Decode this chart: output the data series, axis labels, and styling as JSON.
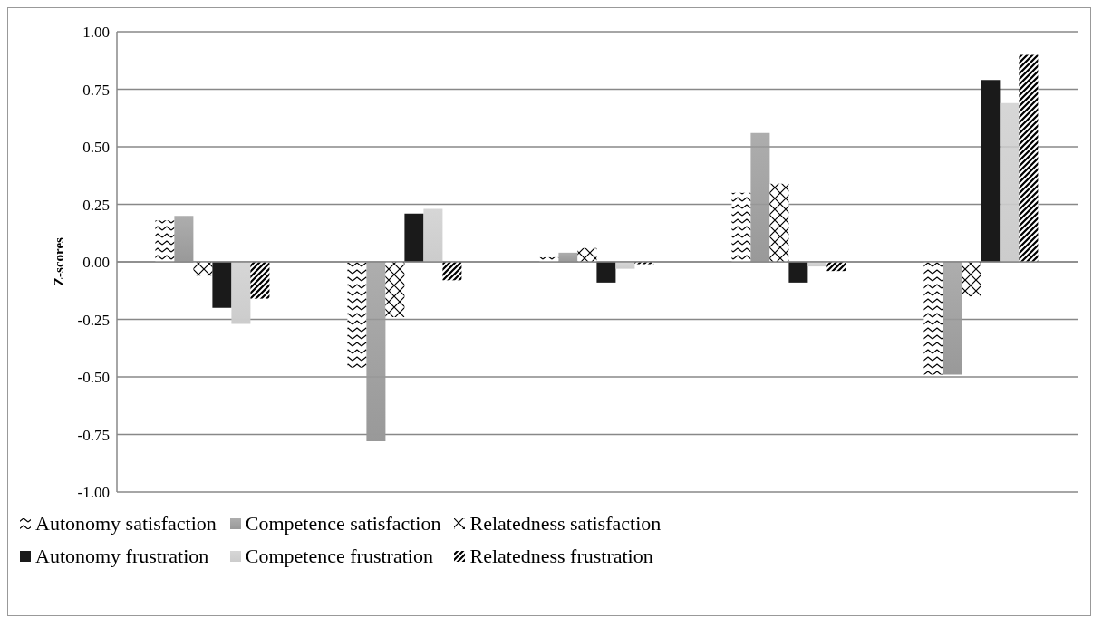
{
  "chart_data": {
    "type": "bar",
    "ylabel": "Z-scores",
    "categories": [
      null,
      null,
      null,
      null,
      null
    ],
    "series": [
      {
        "name": "Autonomy satisfaction",
        "color": "#000000",
        "values": [
          0.18,
          -0.46,
          0.02,
          0.3,
          -0.49
        ]
      },
      {
        "name": "Competence satisfaction",
        "color": "#999999",
        "values": [
          0.2,
          -0.78,
          0.04,
          0.56,
          -0.49
        ]
      },
      {
        "name": "Relatedness satisfaction",
        "color": "#000000",
        "values": [
          -0.06,
          -0.24,
          0.06,
          0.34,
          -0.15
        ]
      },
      {
        "name": "Autonomy frustration",
        "color": "#1a1a1a",
        "values": [
          -0.2,
          0.21,
          -0.09,
          -0.09,
          0.79
        ]
      },
      {
        "name": "Competence frustration",
        "color": "#cccccc",
        "values": [
          -0.27,
          0.23,
          -0.03,
          -0.02,
          0.69
        ]
      },
      {
        "name": "Relatedness frustration",
        "color": "#000000",
        "values": [
          -0.16,
          -0.08,
          -0.01,
          -0.04,
          0.9
        ]
      }
    ],
    "ylim": [
      -1,
      1
    ],
    "yticks": [
      {
        "value": -1,
        "label": "-1.00"
      },
      {
        "value": -0.75,
        "label": "-0.75"
      },
      {
        "value": -0.5,
        "label": "-0.50"
      },
      {
        "value": -0.25,
        "label": "-0.25"
      },
      {
        "value": 0,
        "label": "0.00"
      },
      {
        "value": 0.25,
        "label": "0.25"
      },
      {
        "value": 0.5,
        "label": "0.50"
      },
      {
        "value": 0.75,
        "label": "0.75"
      },
      {
        "value": 1,
        "label": "1.00"
      }
    ],
    "grid": "y",
    "legend": "bottom",
    "tick_labels": "y"
  }
}
